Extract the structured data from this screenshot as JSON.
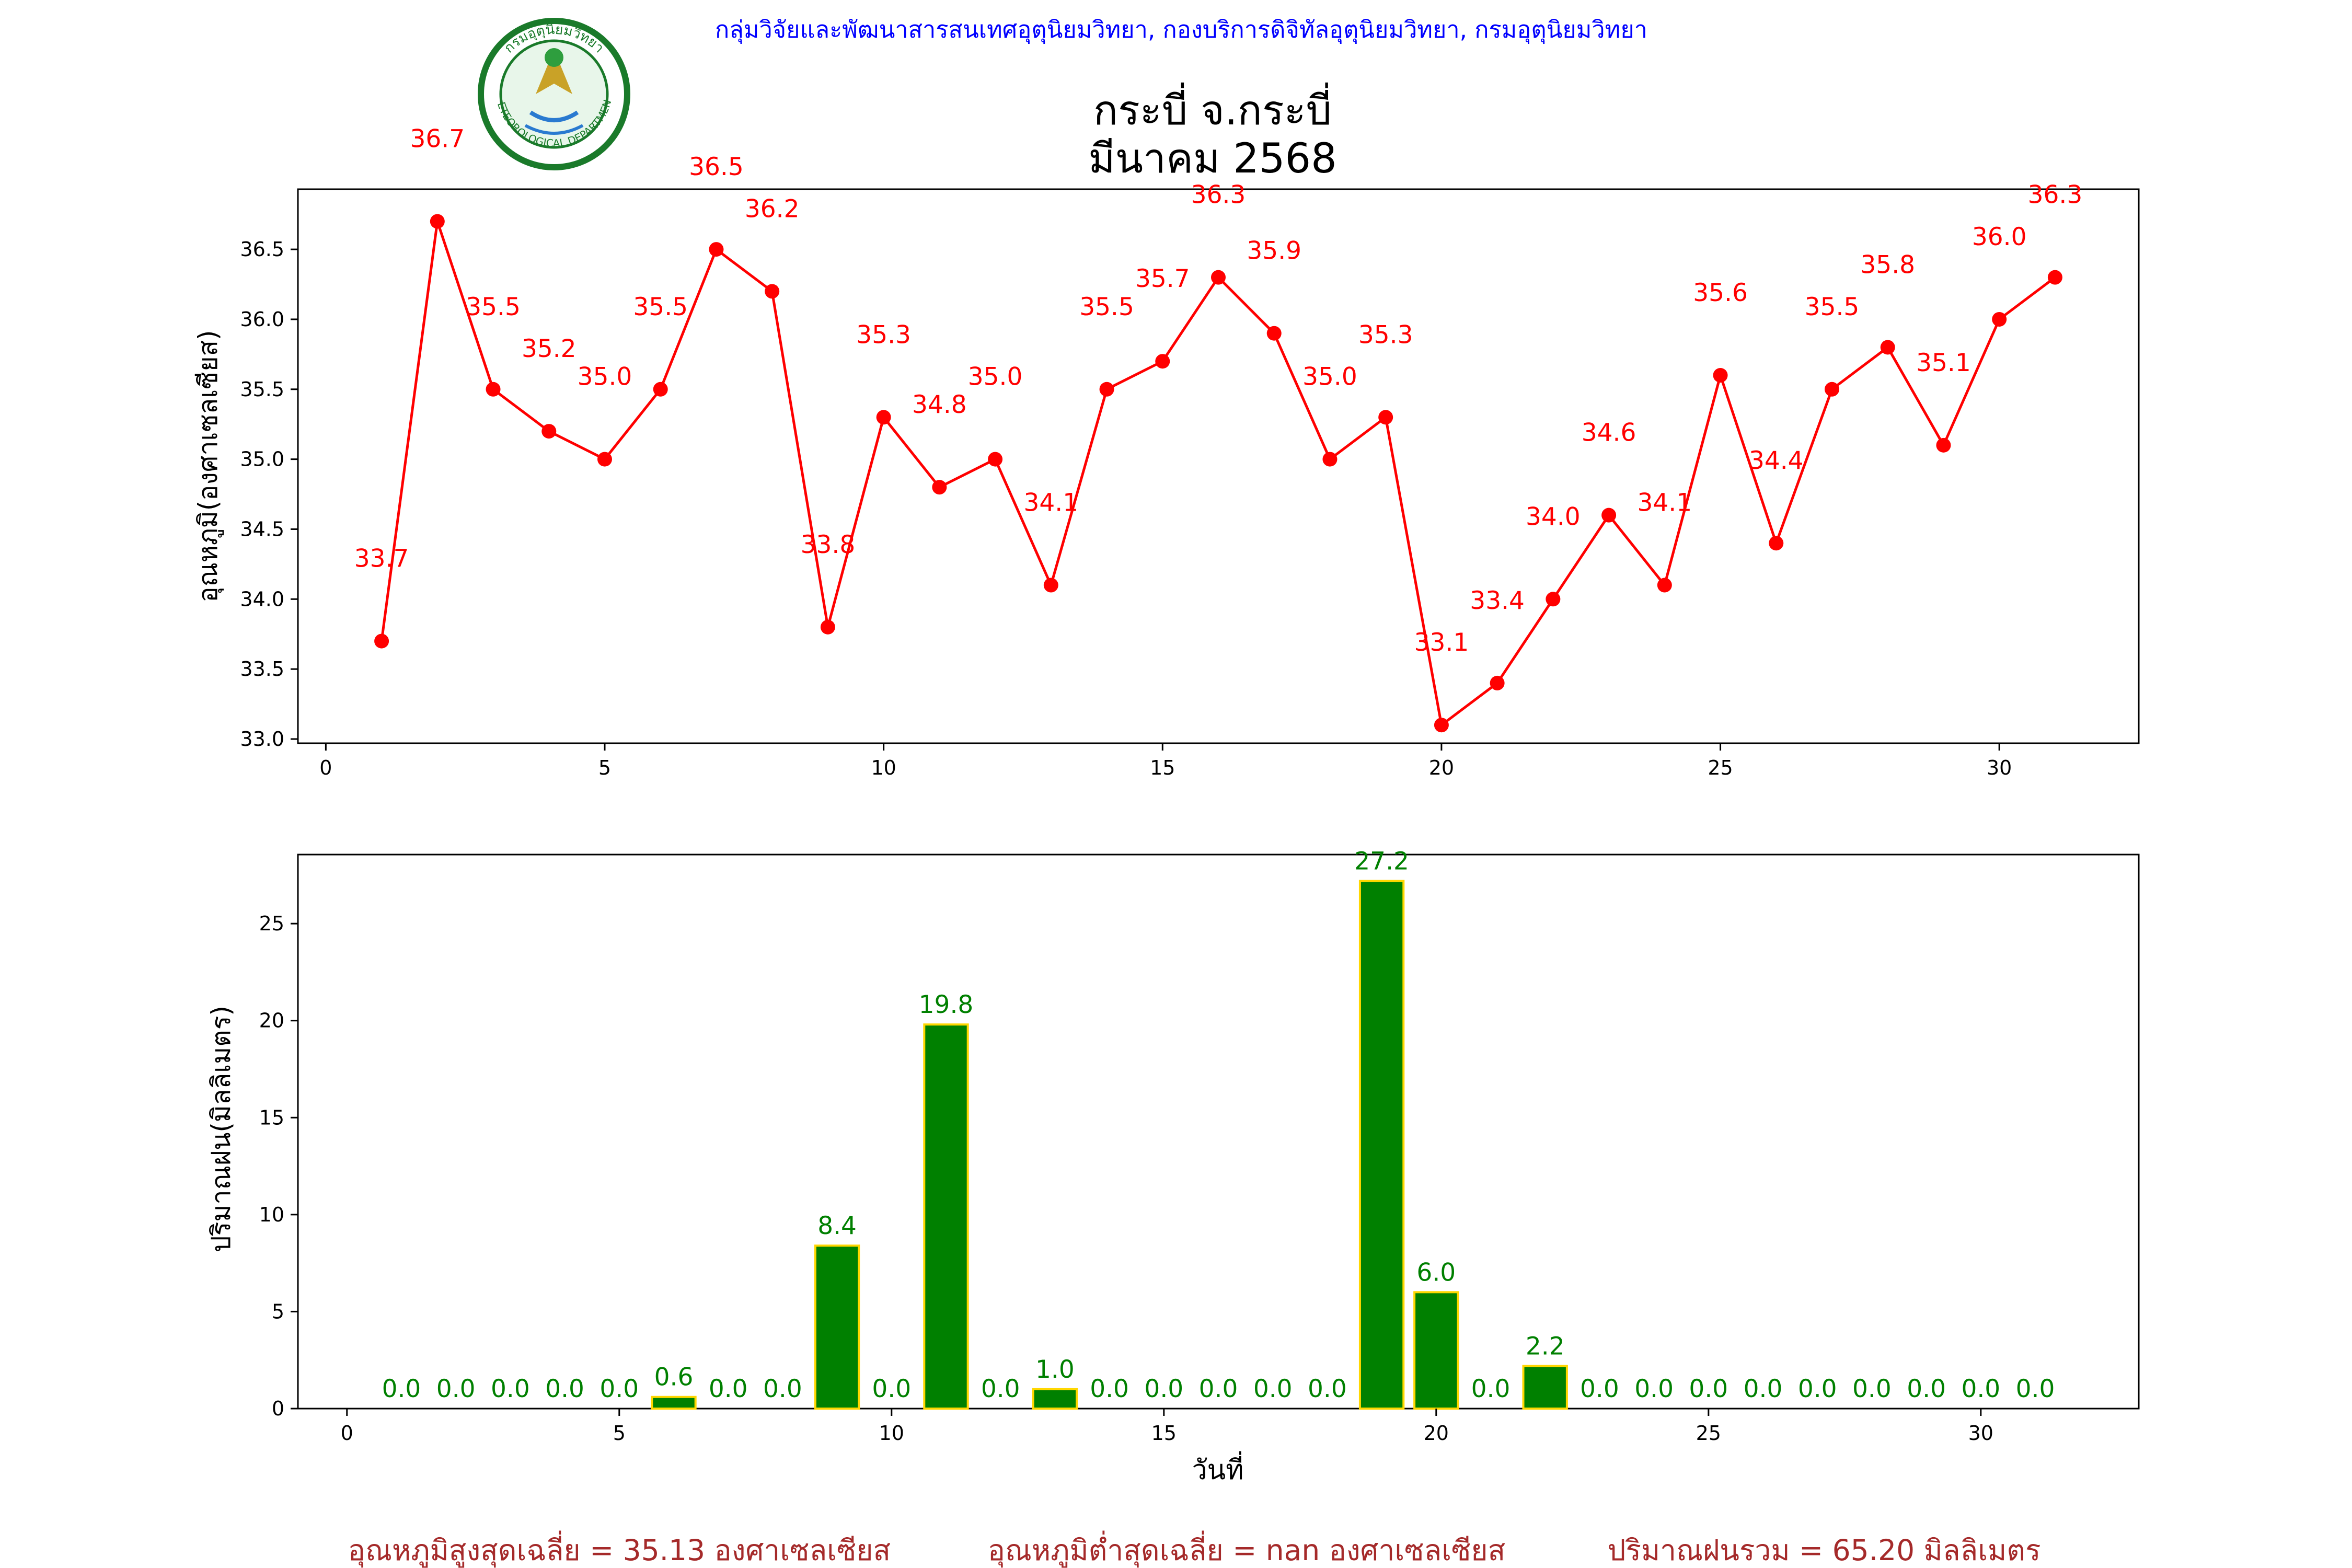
{
  "header": {
    "department_line": "กลุ่มวิจัยและพัฒนาสารสนเทศอุตุนิยมวิทยา, กองบริการดิจิทัลอุตุนิยมวิทยา, กรมอุตุนิยมวิทยา",
    "logo_text_top": "กรมอุตุนิยมวิทยา",
    "logo_text_bottom": "METEOROLOGICAL DEPARTMENT"
  },
  "title_line1": "กระบี่ จ.กระบี่",
  "title_line2": "มีนาคม 2568",
  "colors": {
    "temp": "#ff0000",
    "rain_fill": "#008000",
    "rain_edge": "#ffd700",
    "footer": "#a52a2a",
    "header": "#0000ff"
  },
  "chart_data": [
    {
      "type": "line",
      "ylabel": "อุณหภูมิ(องศาเซลเซียส)",
      "xlabel": "",
      "xlim": [
        -0.5,
        32.5
      ],
      "ylim": [
        32.97,
        36.93
      ],
      "xticks": [
        0,
        5,
        10,
        15,
        20,
        25,
        30
      ],
      "yticks": [
        33.0,
        33.5,
        34.0,
        34.5,
        35.0,
        35.5,
        36.0,
        36.5
      ],
      "ytick_labels": [
        "33.0",
        "33.5",
        "34.0",
        "34.5",
        "35.0",
        "35.5",
        "36.0",
        "36.5"
      ],
      "x": [
        1,
        2,
        3,
        4,
        5,
        6,
        7,
        8,
        9,
        10,
        11,
        12,
        13,
        14,
        15,
        16,
        17,
        18,
        19,
        20,
        21,
        22,
        23,
        24,
        25,
        26,
        27,
        28,
        29,
        30,
        31
      ],
      "values": [
        33.7,
        36.7,
        35.5,
        35.2,
        35.0,
        35.5,
        36.5,
        36.2,
        33.8,
        35.3,
        34.8,
        35.0,
        34.1,
        35.5,
        35.7,
        36.3,
        35.9,
        35.0,
        35.3,
        33.1,
        33.4,
        34.0,
        34.6,
        34.1,
        35.6,
        34.4,
        35.5,
        35.8,
        35.1,
        36.0,
        36.3
      ],
      "labels": [
        "33.7",
        "36.7",
        "35.5",
        "35.2",
        "35.0",
        "35.5",
        "36.5",
        "36.2",
        "33.8",
        "35.3",
        "34.8",
        "35.0",
        "34.1",
        "35.5",
        "35.7",
        "36.3",
        "35.9",
        "35.0",
        "35.3",
        "33.1",
        "33.4",
        "34.0",
        "34.6",
        "34.1",
        "35.6",
        "34.4",
        "35.5",
        "35.8",
        "35.1",
        "36.0",
        "36.3"
      ],
      "grid": false
    },
    {
      "type": "bar",
      "ylabel": "ปริมาณฝน(มิลลิเมตร)",
      "xlabel": "วันที่",
      "xlim": [
        -0.9,
        32.9
      ],
      "ylim": [
        0,
        28.56
      ],
      "xticks": [
        0,
        5,
        10,
        15,
        20,
        25,
        30
      ],
      "yticks": [
        0,
        5,
        10,
        15,
        20,
        25
      ],
      "x": [
        1,
        2,
        3,
        4,
        5,
        6,
        7,
        8,
        9,
        10,
        11,
        12,
        13,
        14,
        15,
        16,
        17,
        18,
        19,
        20,
        21,
        22,
        23,
        24,
        25,
        26,
        27,
        28,
        29,
        30,
        31
      ],
      "values": [
        0.0,
        0.0,
        0.0,
        0.0,
        0.0,
        0.6,
        0.0,
        0.0,
        8.4,
        0.0,
        19.8,
        0.0,
        1.0,
        0.0,
        0.0,
        0.0,
        0.0,
        0.0,
        27.2,
        6.0,
        0.0,
        2.2,
        0.0,
        0.0,
        0.0,
        0.0,
        0.0,
        0.0,
        0.0,
        0.0,
        0.0
      ],
      "labels": [
        "0.0",
        "0.0",
        "0.0",
        "0.0",
        "0.0",
        "0.6",
        "0.0",
        "0.0",
        "8.4",
        "0.0",
        "19.8",
        "0.0",
        "1.0",
        "0.0",
        "0.0",
        "0.0",
        "0.0",
        "0.0",
        "27.2",
        "6.0",
        "0.0",
        "2.2",
        "0.0",
        "0.0",
        "0.0",
        "0.0",
        "0.0",
        "0.0",
        "0.0",
        "0.0",
        "0.0"
      ],
      "grid": false
    }
  ],
  "footer": {
    "avg_max": "อุณหภูมิสูงสุดเฉลี่ย = 35.13 องศาเซลเซียส",
    "avg_min": "อุณหภูมิต่ำสุดเฉลี่ย = nan องศาเซลเซียส",
    "rain_total": "ปริมาณฝนรวม = 65.20 มิลลิเมตร"
  }
}
